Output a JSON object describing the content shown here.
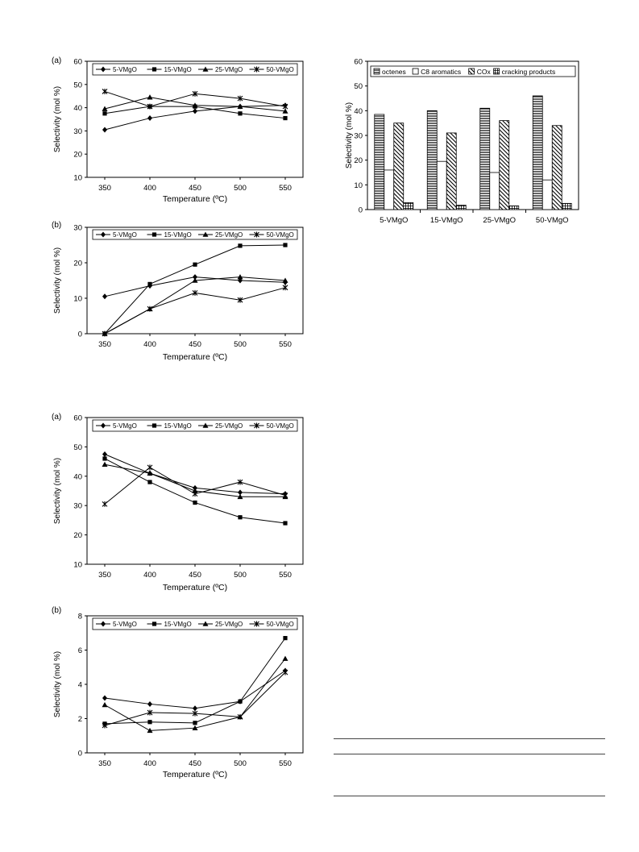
{
  "chart_data": [
    {
      "id": "fig1a",
      "type": "line",
      "panel_label": "(a)",
      "xlabel": "Temperature (ºC)",
      "ylabel": "Selectivity (mol %)",
      "x": [
        350,
        400,
        450,
        500,
        550
      ],
      "ylim": [
        10,
        60
      ],
      "yticks": [
        10,
        20,
        30,
        40,
        50,
        60
      ],
      "grid": false,
      "legend": "top",
      "series": [
        {
          "name": "5-VMgO",
          "marker": "diamond",
          "values": [
            30.5,
            35.5,
            38.5,
            40.5,
            41
          ]
        },
        {
          "name": "15-VMgO",
          "marker": "square",
          "values": [
            37.5,
            40.5,
            40.5,
            37.5,
            35.5
          ]
        },
        {
          "name": "25-VMgO",
          "marker": "triangle",
          "values": [
            39.5,
            44.5,
            41,
            40.5,
            38.5
          ]
        },
        {
          "name": "50-VMgO",
          "marker": "star",
          "values": [
            47,
            40.5,
            46,
            44,
            40.5
          ]
        }
      ]
    },
    {
      "id": "fig1b",
      "type": "line",
      "panel_label": "(b)",
      "xlabel": "Temperature (ºC)",
      "ylabel": "Selectivity (mol %)",
      "x": [
        350,
        400,
        450,
        500,
        550
      ],
      "ylim": [
        0,
        30
      ],
      "yticks": [
        0,
        10,
        20,
        30
      ],
      "grid": false,
      "legend": "top",
      "series": [
        {
          "name": "5-VMgO",
          "marker": "diamond",
          "values": [
            10.5,
            13.5,
            16,
            15,
            14.5
          ]
        },
        {
          "name": "15-VMgO",
          "marker": "square",
          "values": [
            0,
            14,
            19.5,
            24.8,
            25
          ]
        },
        {
          "name": "25-VMgO",
          "marker": "triangle",
          "values": [
            0,
            7,
            15,
            16,
            15
          ]
        },
        {
          "name": "50-VMgO",
          "marker": "star",
          "values": [
            0,
            7,
            11.5,
            9.5,
            13
          ]
        }
      ]
    },
    {
      "id": "fig2",
      "type": "bar",
      "xlabel": "",
      "ylabel": "Selectivity (mol %)",
      "categories": [
        "5-VMgO",
        "15-VMgO",
        "25-VMgO",
        "50-VMgO"
      ],
      "ylim": [
        0,
        60
      ],
      "yticks": [
        0,
        10,
        20,
        30,
        40,
        50,
        60
      ],
      "grid": false,
      "legend": "top",
      "series": [
        {
          "name": "octenes",
          "pattern": "hlines",
          "values": [
            38.5,
            40,
            41,
            46
          ]
        },
        {
          "name": "C8 aromatics",
          "pattern": "blank",
          "values": [
            16,
            19.5,
            15,
            12
          ]
        },
        {
          "name": "COx",
          "pattern": "diag",
          "values": [
            35,
            31,
            36,
            34
          ]
        },
        {
          "name": "cracking products",
          "pattern": "cross",
          "values": [
            2.8,
            1.8,
            1.5,
            2.5
          ]
        }
      ]
    },
    {
      "id": "fig3a",
      "type": "line",
      "panel_label": "(a)",
      "xlabel": "Temperature (ºC)",
      "ylabel": "Selectivity (mol %)",
      "x": [
        350,
        400,
        450,
        500,
        550
      ],
      "ylim": [
        10,
        60
      ],
      "yticks": [
        10,
        20,
        30,
        40,
        50,
        60
      ],
      "grid": false,
      "legend": "top",
      "series": [
        {
          "name": "5-VMgO",
          "marker": "diamond",
          "values": [
            47.5,
            41,
            36,
            34.5,
            34
          ]
        },
        {
          "name": "15-VMgO",
          "marker": "square",
          "values": [
            46,
            38,
            31,
            26,
            24
          ]
        },
        {
          "name": "25-VMgO",
          "marker": "triangle",
          "values": [
            44,
            41,
            35,
            33,
            33
          ]
        },
        {
          "name": "50-VMgO",
          "marker": "star",
          "values": [
            30.5,
            43,
            34,
            38,
            33.5
          ]
        }
      ]
    },
    {
      "id": "fig3b",
      "type": "line",
      "panel_label": "(b)",
      "xlabel": "Temperature (ºC)",
      "ylabel": "Selectivity (mol %)",
      "x": [
        350,
        400,
        450,
        500,
        550
      ],
      "ylim": [
        0,
        8
      ],
      "yticks": [
        0,
        2,
        4,
        6,
        8
      ],
      "grid": false,
      "legend": "top",
      "series": [
        {
          "name": "5-VMgO",
          "marker": "diamond",
          "values": [
            3.2,
            2.85,
            2.6,
            3.0,
            4.8
          ]
        },
        {
          "name": "15-VMgO",
          "marker": "square",
          "values": [
            1.7,
            1.8,
            1.75,
            3.0,
            6.7
          ]
        },
        {
          "name": "25-VMgO",
          "marker": "triangle",
          "values": [
            2.8,
            1.3,
            1.45,
            2.1,
            5.5
          ]
        },
        {
          "name": "50-VMgO",
          "marker": "star",
          "values": [
            1.6,
            2.35,
            2.3,
            2.1,
            4.7
          ]
        }
      ]
    }
  ]
}
